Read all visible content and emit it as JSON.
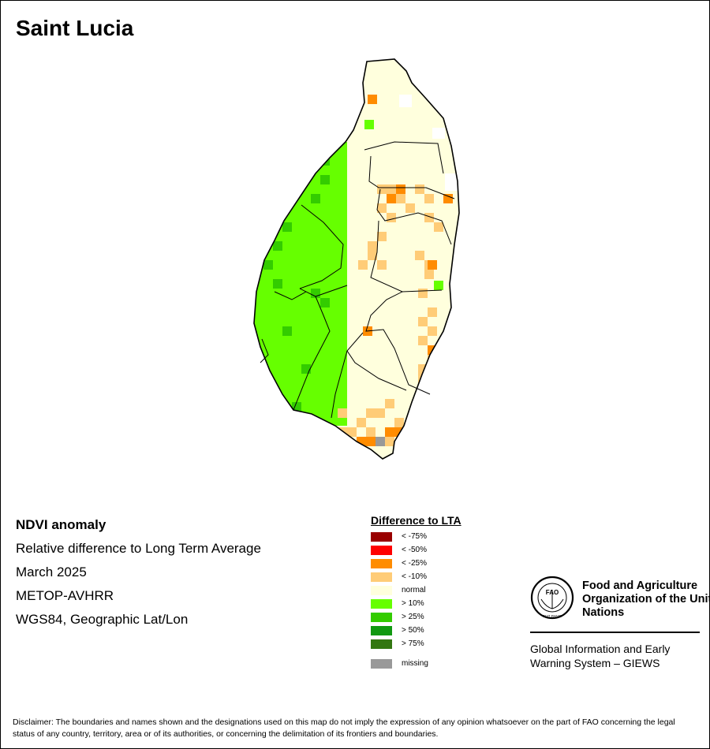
{
  "title": "Saint Lucia",
  "info": {
    "product": "NDVI anomaly",
    "description": "Relative difference to Long Term Average",
    "period": "March 2025",
    "sensor": "METOP-AVHRR",
    "projection": "WGS84, Geographic Lat/Lon"
  },
  "legend": {
    "title": "Difference to LTA",
    "items": [
      {
        "label": "< -75%",
        "color": "#990000"
      },
      {
        "label": "< -50%",
        "color": "#ff0000"
      },
      {
        "label": "< -25%",
        "color": "#ff8c00"
      },
      {
        "label": "< -10%",
        "color": "#ffcc77"
      },
      {
        "label": "normal",
        "color": "#ffffdd"
      },
      {
        "label": "> 10%",
        "color": "#66ff00"
      },
      {
        "label": "> 25%",
        "color": "#33cc00"
      },
      {
        "label": "> 50%",
        "color": "#119911"
      },
      {
        "label": "> 75%",
        "color": "#337711"
      }
    ],
    "missing": {
      "label": "missing",
      "color": "#999999"
    }
  },
  "org": {
    "name": "Food and Agriculture Organization of the United Nations",
    "logo_text": "FAO",
    "logo_motto": "FIAT PANIS",
    "system": "Global Information and Early Warning System – GIEWS"
  },
  "disclaimer": "Disclaimer: The boundaries and names shown and the designations used on this map do not imply the expression of any opinion whatsoever on the part of FAO concerning the legal status of any country, territory, area or of its authorities, or concerning the delimitation of its frontiers and boundaries."
}
